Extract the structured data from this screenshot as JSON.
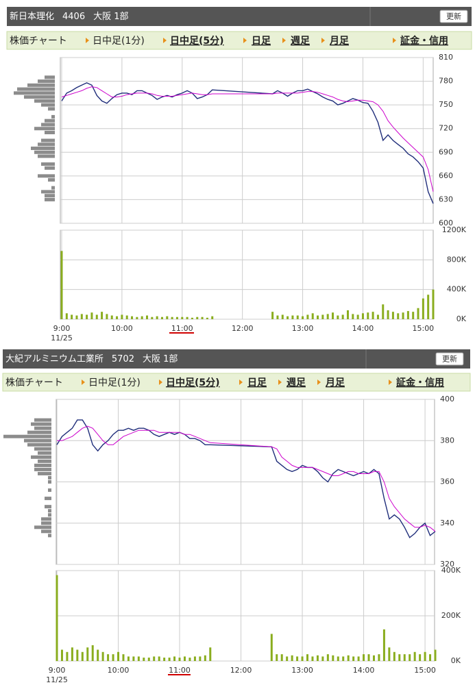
{
  "panels": [
    {
      "name": "新日本理化",
      "code": "4406",
      "market": "大阪 1部",
      "button": "更新",
      "tabs": [
        "株価チャート",
        "日中足(1分)",
        "日中足(5分)",
        "日足",
        "週足",
        "月足",
        "証金・信用"
      ]
    },
    {
      "name": "大紀アルミニウム工業所",
      "code": "5702",
      "market": "大阪 1部",
      "button": "更新",
      "tabs": [
        "株価チャート",
        "日中足(1分)",
        "日中足(5分)",
        "日足",
        "週足",
        "月足",
        "証金・信用"
      ]
    }
  ],
  "chart_data": [
    {
      "type": "line",
      "xlim": [
        "9:00",
        "15:10"
      ],
      "ylim": [
        600,
        810
      ],
      "yticks": [
        600,
        630,
        660,
        690,
        720,
        750,
        780,
        810
      ],
      "grid": true,
      "x": [
        "9:00",
        "9:05",
        "9:10",
        "9:15",
        "9:20",
        "9:25",
        "9:30",
        "9:35",
        "9:40",
        "9:45",
        "9:50",
        "9:55",
        "10:00",
        "10:05",
        "10:10",
        "10:15",
        "10:20",
        "10:25",
        "10:30",
        "10:35",
        "10:40",
        "10:45",
        "10:50",
        "10:55",
        "11:00",
        "11:05",
        "11:10",
        "11:15",
        "11:20",
        "11:25",
        "11:30",
        "12:30",
        "12:35",
        "12:40",
        "12:45",
        "12:50",
        "12:55",
        "13:00",
        "13:05",
        "13:10",
        "13:15",
        "13:20",
        "13:25",
        "13:30",
        "13:35",
        "13:40",
        "13:45",
        "13:50",
        "13:55",
        "14:00",
        "14:05",
        "14:10",
        "14:15",
        "14:20",
        "14:25",
        "14:30",
        "14:35",
        "14:40",
        "14:45",
        "14:50",
        "14:55",
        "15:00",
        "15:05",
        "15:10"
      ],
      "series": [
        {
          "color": "#1f2d7a",
          "values": [
            755,
            765,
            768,
            772,
            775,
            778,
            775,
            762,
            755,
            752,
            758,
            763,
            765,
            765,
            763,
            768,
            768,
            765,
            762,
            757,
            760,
            762,
            760,
            763,
            765,
            768,
            765,
            758,
            760,
            763,
            769,
            764,
            768,
            765,
            761,
            765,
            768,
            768,
            770,
            767,
            764,
            760,
            757,
            755,
            750,
            752,
            755,
            758,
            756,
            753,
            752,
            742,
            728,
            705,
            712,
            705,
            700,
            695,
            688,
            684,
            678,
            670,
            640,
            625
          ]
        },
        {
          "color": "#cc00cc",
          "values": [
            760,
            762,
            764,
            766,
            768,
            771,
            773,
            772,
            768,
            764,
            760,
            760,
            761,
            763,
            764,
            765,
            765,
            765,
            764,
            762,
            761,
            761,
            761,
            762,
            763,
            764,
            765,
            764,
            763,
            763,
            764,
            764,
            765,
            765,
            765,
            765,
            765,
            766,
            767,
            767,
            766,
            764,
            762,
            760,
            757,
            755,
            754,
            755,
            756,
            756,
            755,
            754,
            750,
            742,
            730,
            722,
            715,
            708,
            702,
            696,
            690,
            684,
            668,
            640
          ]
        }
      ],
      "price_volume": {
        "color": "#8c8c8c",
        "prices": [
          785,
          780,
          775,
          770,
          765,
          760,
          755,
          750,
          745,
          735,
          730,
          725,
          720,
          715,
          705,
          700,
          695,
          690,
          685,
          675,
          670,
          660,
          655,
          645,
          640,
          635,
          630
        ],
        "values": [
          15,
          25,
          40,
          55,
          60,
          45,
          30,
          20,
          10,
          5,
          15,
          20,
          30,
          15,
          20,
          25,
          35,
          30,
          25,
          20,
          15,
          25,
          10,
          5,
          20,
          15,
          15
        ]
      }
    },
    {
      "type": "bar",
      "color": "#8aad1e",
      "xlim": [
        "9:00",
        "15:10"
      ],
      "ylim": [
        0,
        1200000
      ],
      "yticks": [
        {
          "value": 0,
          "label": "0K"
        },
        {
          "value": 400000,
          "label": "400K"
        },
        {
          "value": 800000,
          "label": "800K"
        },
        {
          "value": 1200000,
          "label": "1200K"
        }
      ],
      "xticks": [
        "9:00",
        "10:00",
        "11:00",
        "12:00",
        "13:00",
        "14:00",
        "15:00"
      ],
      "date": "11/25",
      "grid": true,
      "x": [
        "9:00",
        "9:05",
        "9:10",
        "9:15",
        "9:20",
        "9:25",
        "9:30",
        "9:35",
        "9:40",
        "9:45",
        "9:50",
        "9:55",
        "10:00",
        "10:05",
        "10:10",
        "10:15",
        "10:20",
        "10:25",
        "10:30",
        "10:35",
        "10:40",
        "10:45",
        "10:50",
        "10:55",
        "11:00",
        "11:05",
        "11:10",
        "11:15",
        "11:20",
        "11:25",
        "11:30",
        "12:30",
        "12:35",
        "12:40",
        "12:45",
        "12:50",
        "12:55",
        "13:00",
        "13:05",
        "13:10",
        "13:15",
        "13:20",
        "13:25",
        "13:30",
        "13:35",
        "13:40",
        "13:45",
        "13:50",
        "13:55",
        "14:00",
        "14:05",
        "14:10",
        "14:15",
        "14:20",
        "14:25",
        "14:30",
        "14:35",
        "14:40",
        "14:45",
        "14:50",
        "14:55",
        "15:00",
        "15:05",
        "15:10"
      ],
      "values": [
        920000,
        80000,
        60000,
        50000,
        70000,
        60000,
        90000,
        60000,
        100000,
        70000,
        50000,
        40000,
        60000,
        50000,
        40000,
        30000,
        40000,
        50000,
        30000,
        40000,
        30000,
        40000,
        30000,
        30000,
        30000,
        30000,
        20000,
        30000,
        30000,
        20000,
        40000,
        100000,
        50000,
        60000,
        40000,
        50000,
        50000,
        40000,
        60000,
        80000,
        50000,
        60000,
        70000,
        90000,
        50000,
        60000,
        120000,
        70000,
        60000,
        80000,
        90000,
        100000,
        60000,
        200000,
        120000,
        100000,
        80000,
        90000,
        110000,
        100000,
        150000,
        280000,
        330000,
        400000
      ]
    },
    {
      "type": "line",
      "xlim": [
        "9:00",
        "15:10"
      ],
      "ylim": [
        320,
        400
      ],
      "yticks": [
        320,
        340,
        360,
        380,
        400
      ],
      "grid": true,
      "x": [
        "9:00",
        "9:05",
        "9:10",
        "9:15",
        "9:20",
        "9:25",
        "9:30",
        "9:35",
        "9:40",
        "9:45",
        "9:50",
        "9:55",
        "10:00",
        "10:05",
        "10:10",
        "10:15",
        "10:20",
        "10:25",
        "10:30",
        "10:35",
        "10:40",
        "10:45",
        "10:50",
        "10:55",
        "11:00",
        "11:05",
        "11:10",
        "11:15",
        "11:20",
        "11:25",
        "11:30",
        "12:30",
        "12:35",
        "12:40",
        "12:45",
        "12:50",
        "12:55",
        "13:00",
        "13:05",
        "13:10",
        "13:15",
        "13:20",
        "13:25",
        "13:30",
        "13:35",
        "13:40",
        "13:45",
        "13:50",
        "13:55",
        "14:00",
        "14:05",
        "14:10",
        "14:15",
        "14:20",
        "14:25",
        "14:30",
        "14:35",
        "14:40",
        "14:45",
        "14:50",
        "14:55",
        "15:00",
        "15:05",
        "15:10"
      ],
      "series": [
        {
          "color": "#1f2d7a",
          "values": [
            378,
            382,
            384,
            386,
            390,
            390,
            386,
            378,
            375,
            378,
            380,
            383,
            385,
            385,
            386,
            385,
            386,
            386,
            385,
            383,
            382,
            383,
            384,
            383,
            384,
            383,
            381,
            381,
            380,
            378,
            378,
            377,
            370,
            368,
            366,
            365,
            366,
            368,
            367,
            367,
            365,
            362,
            360,
            364,
            366,
            365,
            364,
            363,
            364,
            365,
            364,
            366,
            364,
            352,
            342,
            344,
            342,
            338,
            333,
            335,
            338,
            340,
            334,
            336
          ]
        },
        {
          "color": "#cc00cc",
          "values": [
            380,
            380,
            381,
            382,
            384,
            386,
            387,
            386,
            383,
            380,
            378,
            378,
            380,
            382,
            383,
            384,
            385,
            385,
            385,
            385,
            384,
            384,
            384,
            384,
            384,
            383,
            383,
            382,
            381,
            380,
            379,
            377,
            376,
            372,
            370,
            368,
            367,
            367,
            367,
            367,
            366,
            365,
            364,
            363,
            363,
            364,
            365,
            365,
            364,
            364,
            364,
            365,
            365,
            360,
            352,
            348,
            345,
            342,
            340,
            338,
            338,
            339,
            338,
            336
          ]
        }
      ],
      "price_volume": {
        "color": "#8c8c8c",
        "prices": [
          390,
          388,
          386,
          384,
          382,
          380,
          378,
          376,
          374,
          372,
          370,
          368,
          366,
          364,
          362,
          360,
          356,
          352,
          348,
          346,
          344,
          342,
          340,
          338,
          336,
          334
        ],
        "values": [
          25,
          30,
          25,
          35,
          70,
          40,
          35,
          25,
          20,
          30,
          20,
          25,
          25,
          20,
          5,
          5,
          5,
          10,
          10,
          5,
          5,
          15,
          15,
          25,
          15,
          5
        ]
      }
    },
    {
      "type": "bar",
      "color": "#8aad1e",
      "xlim": [
        "9:00",
        "15:10"
      ],
      "ylim": [
        0,
        400000
      ],
      "yticks": [
        {
          "value": 0,
          "label": "0K"
        },
        {
          "value": 200000,
          "label": "200K"
        },
        {
          "value": 400000,
          "label": "400K"
        }
      ],
      "xticks": [
        "9:00",
        "10:00",
        "11:00",
        "12:00",
        "13:00",
        "14:00",
        "15:00"
      ],
      "date": "11/25",
      "grid": true,
      "x": [
        "9:00",
        "9:05",
        "9:10",
        "9:15",
        "9:20",
        "9:25",
        "9:30",
        "9:35",
        "9:40",
        "9:45",
        "9:50",
        "9:55",
        "10:00",
        "10:05",
        "10:10",
        "10:15",
        "10:20",
        "10:25",
        "10:30",
        "10:35",
        "10:40",
        "10:45",
        "10:50",
        "10:55",
        "11:00",
        "11:05",
        "11:10",
        "11:15",
        "11:20",
        "11:25",
        "11:30",
        "12:30",
        "12:35",
        "12:40",
        "12:45",
        "12:50",
        "12:55",
        "13:00",
        "13:05",
        "13:10",
        "13:15",
        "13:20",
        "13:25",
        "13:30",
        "13:35",
        "13:40",
        "13:45",
        "13:50",
        "13:55",
        "14:00",
        "14:05",
        "14:10",
        "14:15",
        "14:20",
        "14:25",
        "14:30",
        "14:35",
        "14:40",
        "14:45",
        "14:50",
        "14:55",
        "15:00",
        "15:05",
        "15:10"
      ],
      "values": [
        380000,
        50000,
        40000,
        60000,
        50000,
        40000,
        60000,
        70000,
        50000,
        40000,
        30000,
        30000,
        40000,
        30000,
        20000,
        20000,
        20000,
        15000,
        15000,
        20000,
        20000,
        15000,
        15000,
        20000,
        15000,
        20000,
        15000,
        20000,
        20000,
        25000,
        60000,
        120000,
        30000,
        30000,
        20000,
        25000,
        20000,
        20000,
        30000,
        20000,
        25000,
        20000,
        30000,
        25000,
        20000,
        20000,
        25000,
        20000,
        20000,
        30000,
        30000,
        25000,
        30000,
        140000,
        60000,
        40000,
        30000,
        30000,
        30000,
        40000,
        30000,
        40000,
        30000,
        50000
      ]
    }
  ]
}
